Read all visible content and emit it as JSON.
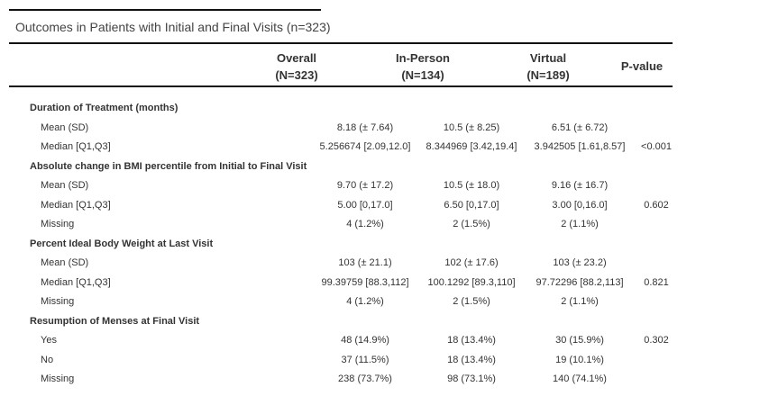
{
  "title": "Outcomes in Patients with Initial and Final Visits (n=323)",
  "header": {
    "overall": [
      "Overall",
      "(N=323)"
    ],
    "inperson": [
      "In-Person",
      "(N=134)"
    ],
    "virtual": [
      "Virtual",
      "(N=189)"
    ],
    "pvalue": "P-value"
  },
  "rows": [
    {
      "type": "section",
      "label": "Duration of Treatment (months)"
    },
    {
      "type": "sub",
      "label": "Mean (SD)",
      "overall": "8.18 (± 7.64)",
      "inperson": "10.5 (± 8.25)",
      "virtual": "6.51 (± 6.72)",
      "pvalue": ""
    },
    {
      "type": "sub",
      "label": "Median [Q1,Q3]",
      "overall": "5.256674 [2.09,12.0]",
      "inperson": "8.344969 [3.42,19.4]",
      "virtual": "3.942505 [1.61,8.57]",
      "pvalue": "<0.001"
    },
    {
      "type": "section",
      "label": "Absolute change in BMI percentile from Initial to Final Visit"
    },
    {
      "type": "sub",
      "label": "Mean (SD)",
      "overall": "9.70 (± 17.2)",
      "inperson": "10.5 (± 18.0)",
      "virtual": "9.16 (± 16.7)",
      "pvalue": ""
    },
    {
      "type": "sub",
      "label": "Median [Q1,Q3]",
      "overall": "5.00 [0,17.0]",
      "inperson": "6.50 [0,17.0]",
      "virtual": "3.00 [0,16.0]",
      "pvalue": "0.602"
    },
    {
      "type": "sub",
      "label": "Missing",
      "overall": "4 (1.2%)",
      "inperson": "2 (1.5%)",
      "virtual": "2 (1.1%)",
      "pvalue": ""
    },
    {
      "type": "section",
      "label": "Percent Ideal Body Weight at Last Visit"
    },
    {
      "type": "sub",
      "label": "Mean (SD)",
      "overall": "103 (± 21.1)",
      "inperson": "102 (± 17.6)",
      "virtual": "103 (± 23.2)",
      "pvalue": ""
    },
    {
      "type": "sub",
      "label": "Median [Q1,Q3]",
      "overall": "99.39759 [88.3,112]",
      "inperson": "100.1292 [89.3,110]",
      "virtual": "97.72296 [88.2,113]",
      "pvalue": "0.821"
    },
    {
      "type": "sub",
      "label": "Missing",
      "overall": "4 (1.2%)",
      "inperson": "2 (1.5%)",
      "virtual": "2 (1.1%)",
      "pvalue": ""
    },
    {
      "type": "section",
      "label": "Resumption of Menses at Final Visit"
    },
    {
      "type": "sub",
      "label": "Yes",
      "overall": "48 (14.9%)",
      "inperson": "18 (13.4%)",
      "virtual": "30 (15.9%)",
      "pvalue": "0.302"
    },
    {
      "type": "sub",
      "label": "No",
      "overall": "37 (11.5%)",
      "inperson": "18 (13.4%)",
      "virtual": "19 (10.1%)",
      "pvalue": ""
    },
    {
      "type": "sub",
      "label": "Missing",
      "overall": "238 (73.7%)",
      "inperson": "98 (73.1%)",
      "virtual": "140 (74.1%)",
      "pvalue": ""
    }
  ]
}
